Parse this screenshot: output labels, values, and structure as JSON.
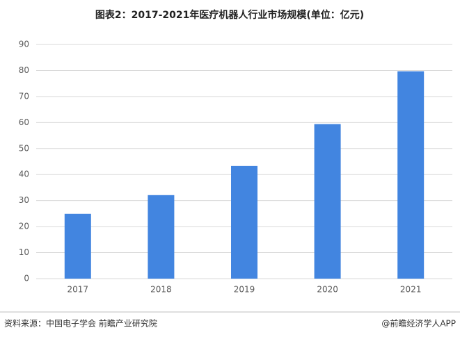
{
  "chart_data": {
    "type": "bar",
    "title": "图表2：2017-2021年医疗机器人行业市场规模(单位：亿元)",
    "categories": [
      "2017",
      "2018",
      "2019",
      "2020",
      "2021"
    ],
    "values": [
      24.9,
      32.1,
      43.3,
      59.4,
      79.7
    ],
    "color": "#4285e0",
    "ylim": [
      0,
      90
    ],
    "yticks": [
      0,
      10,
      20,
      30,
      40,
      50,
      60,
      70,
      80,
      90
    ],
    "grid": true,
    "source": "资料来源：中国电子学会 前瞻产业研究院",
    "credit": "@前瞻经济学人APP"
  }
}
